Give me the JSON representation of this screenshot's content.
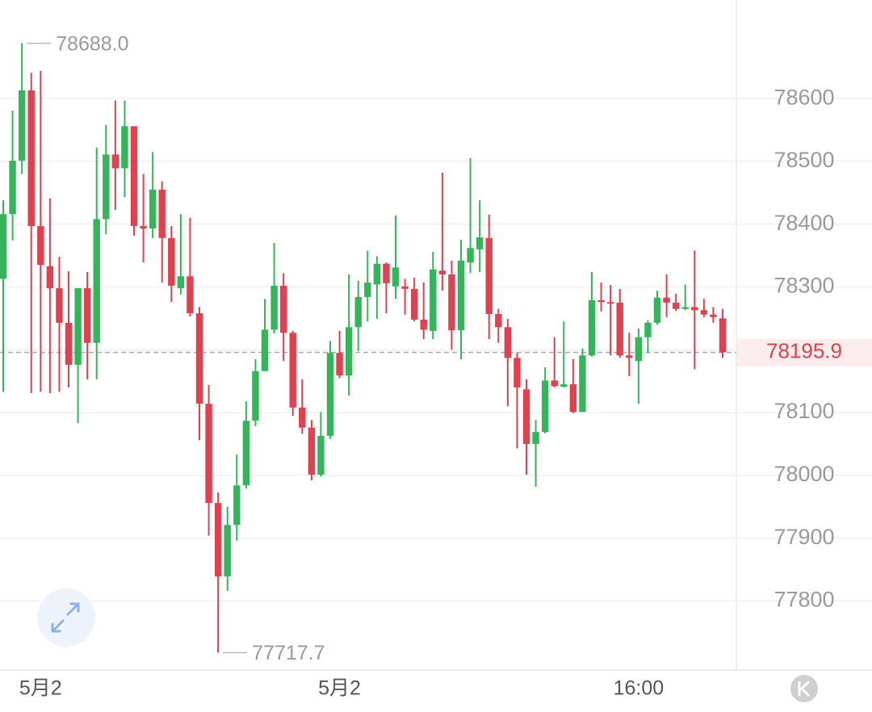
{
  "chart_data": {
    "type": "candlestick",
    "up_color": "#35b55a",
    "down_color": "#e1404f",
    "grid": true,
    "ylim": [
      77690,
      78757
    ],
    "yticks": [
      77800,
      77900,
      78000,
      78100,
      78200,
      78300,
      78400,
      78500,
      78600
    ],
    "categories": [
      null,
      null,
      null,
      null,
      "5月2",
      null,
      null,
      null,
      null,
      null,
      null,
      null,
      null,
      null,
      null,
      null,
      null,
      null,
      null,
      null,
      null,
      null,
      null,
      null,
      null,
      null,
      null,
      null,
      null,
      null,
      null,
      null,
      null,
      null,
      null,
      null,
      "5月2",
      null,
      null,
      null,
      null,
      null,
      null,
      null,
      null,
      null,
      null,
      null,
      null,
      null,
      null,
      null,
      null,
      null,
      null,
      null,
      null,
      null,
      null,
      null,
      null,
      null,
      null,
      null,
      null,
      null,
      null,
      null,
      "16:00",
      null,
      null,
      null,
      null,
      null,
      null,
      null,
      null,
      null
    ],
    "open": [
      78313,
      78416,
      78501,
      78613,
      78397,
      78333,
      78298,
      78243,
      78176,
      78298,
      78211,
      78408,
      78511,
      78489,
      78556,
      78397,
      78393,
      78455,
      78378,
      78298,
      78317,
      78258,
      78114,
      77956,
      77839,
      77921,
      77984,
      78087,
      78166,
      78232,
      78302,
      78227,
      78108,
      78076,
      78001,
      78063,
      78195,
      78159,
      78236,
      78284,
      78304,
      78337,
      78301,
      78301,
      78297,
      78248,
      78230,
      78326,
      78320,
      78231,
      78339,
      78360,
      78378,
      78257,
      78236,
      78187,
      78137,
      78050,
      78069,
      78151,
      78141,
      78145,
      78101,
      78191,
      78279,
      78276,
      78275,
      78191,
      78182,
      78220,
      78243,
      78283,
      78275,
      78265,
      78268,
      78263,
      78256,
      78250
    ],
    "high": [
      78438,
      78581,
      78688,
      78641,
      78644,
      78441,
      78348,
      78325,
      78298,
      78324,
      78522,
      78558,
      78597,
      78597,
      78556,
      78480,
      78515,
      78468,
      78397,
      78416,
      78410,
      78268,
      78144,
      77973,
      77950,
      78033,
      78118,
      78185,
      78281,
      78370,
      78322,
      78230,
      78153,
      78088,
      78101,
      78214,
      78230,
      78320,
      78310,
      78358,
      78349,
      78339,
      78414,
      78313,
      78315,
      78307,
      78356,
      78482,
      78342,
      78375,
      78505,
      78438,
      78415,
      78265,
      78249,
      78195,
      78153,
      78088,
      78172,
      78220,
      78245,
      78185,
      78202,
      78324,
      78307,
      78303,
      78297,
      78227,
      78234,
      78247,
      78294,
      78320,
      78289,
      78304,
      78358,
      78281,
      78268,
      78265
    ],
    "low": [
      78133,
      78374,
      78480,
      78131,
      78133,
      78131,
      78133,
      78140,
      78083,
      78153,
      78153,
      78384,
      78423,
      78443,
      78382,
      78339,
      78378,
      78307,
      78276,
      78288,
      78253,
      78056,
      77904,
      77717.7,
      77816,
      77896,
      77979,
      78078,
      78166,
      78226,
      78182,
      78095,
      78066,
      77992,
      77998,
      78058,
      78155,
      78127,
      78198,
      78245,
      78249,
      78258,
      78281,
      78256,
      78245,
      78217,
      78217,
      78294,
      78200,
      78185,
      78322,
      78324,
      78217,
      78211,
      78110,
      78043,
      78001,
      77982,
      78067,
      78140,
      78140,
      78099,
      78101,
      78189,
      78261,
      78191,
      78187,
      78158,
      78114,
      78195,
      78240,
      78252,
      78262,
      78263,
      78169,
      78252,
      78243,
      78187
    ],
    "close": [
      78416,
      78501,
      78613,
      78397,
      78335,
      78298,
      78243,
      78176,
      78298,
      78211,
      78408,
      78511,
      78489,
      78556,
      78397,
      78393,
      78455,
      78378,
      78302,
      78317,
      78258,
      78114,
      77956,
      77839,
      77921,
      77984,
      78087,
      78166,
      78232,
      78302,
      78227,
      78108,
      78076,
      78001,
      78063,
      78195,
      78159,
      78236,
      78284,
      78307,
      78337,
      78306,
      78331,
      78297,
      78248,
      78232,
      78328,
      78320,
      78231,
      78342,
      78362,
      78379,
      78257,
      78236,
      78187,
      78140,
      78050,
      78069,
      78151,
      78142,
      78145,
      78101,
      78191,
      78279,
      78276,
      78275,
      78191,
      78187,
      78220,
      78243,
      78283,
      78275,
      78265,
      78268,
      78263,
      78256,
      78252,
      78195.9
    ],
    "last_price": 78195.9,
    "annotations": {
      "high": {
        "value": 78688,
        "label": "78688.0"
      },
      "low": 77717.7
    }
  }
}
